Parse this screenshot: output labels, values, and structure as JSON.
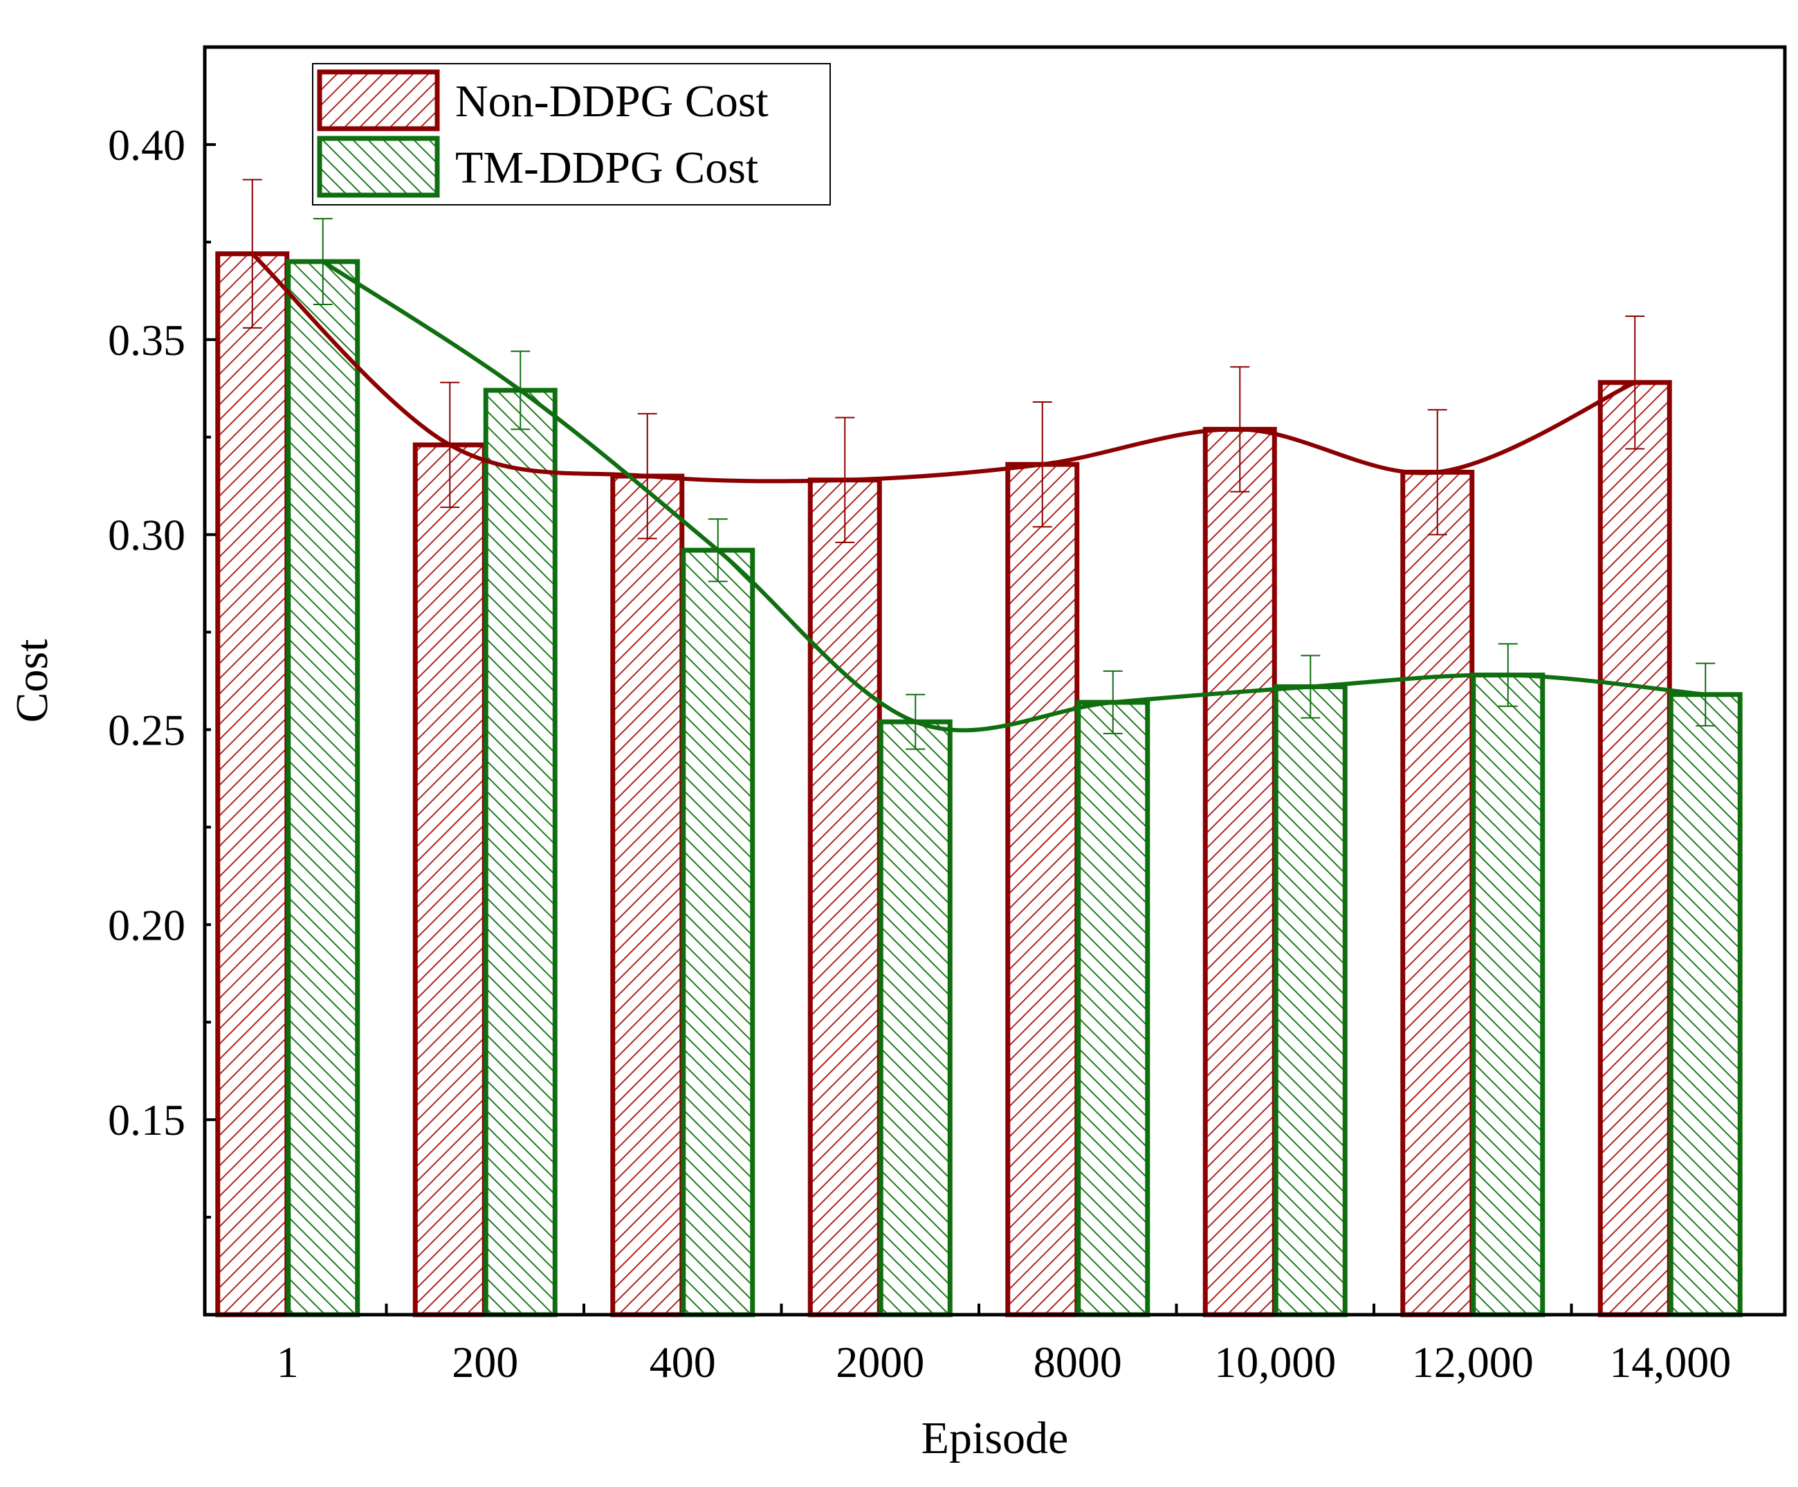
{
  "chart_data": {
    "type": "bar",
    "title": "",
    "xlabel": "Episode",
    "ylabel": "Cost",
    "ylim": [
      0.1,
      0.425
    ],
    "yticks": [
      0.15,
      0.2,
      0.25,
      0.3,
      0.35,
      0.4
    ],
    "ytick_labels": [
      "0.15",
      "0.20",
      "0.25",
      "0.30",
      "0.35",
      "0.40"
    ],
    "grid": false,
    "legend_position": "top-left",
    "categories": [
      "1",
      "200",
      "400",
      "2000",
      "8000",
      "10,000",
      "12,000",
      "14,000"
    ],
    "series": [
      {
        "name": "Non-DDPG Cost",
        "color": "#8b0000",
        "pattern": "forward-hatch",
        "values": [
          0.372,
          0.323,
          0.315,
          0.314,
          0.318,
          0.327,
          0.316,
          0.339
        ],
        "errors": [
          0.019,
          0.016,
          0.016,
          0.016,
          0.016,
          0.016,
          0.016,
          0.017
        ],
        "trend": "smooth fit line"
      },
      {
        "name": "TM-DDPG Cost",
        "color": "#0f6e0f",
        "pattern": "backward-hatch",
        "values": [
          0.37,
          0.337,
          0.296,
          0.252,
          0.257,
          0.261,
          0.264,
          0.259
        ],
        "errors": [
          0.011,
          0.01,
          0.008,
          0.007,
          0.008,
          0.008,
          0.008,
          0.008
        ],
        "trend": "smooth fit line"
      }
    ]
  }
}
